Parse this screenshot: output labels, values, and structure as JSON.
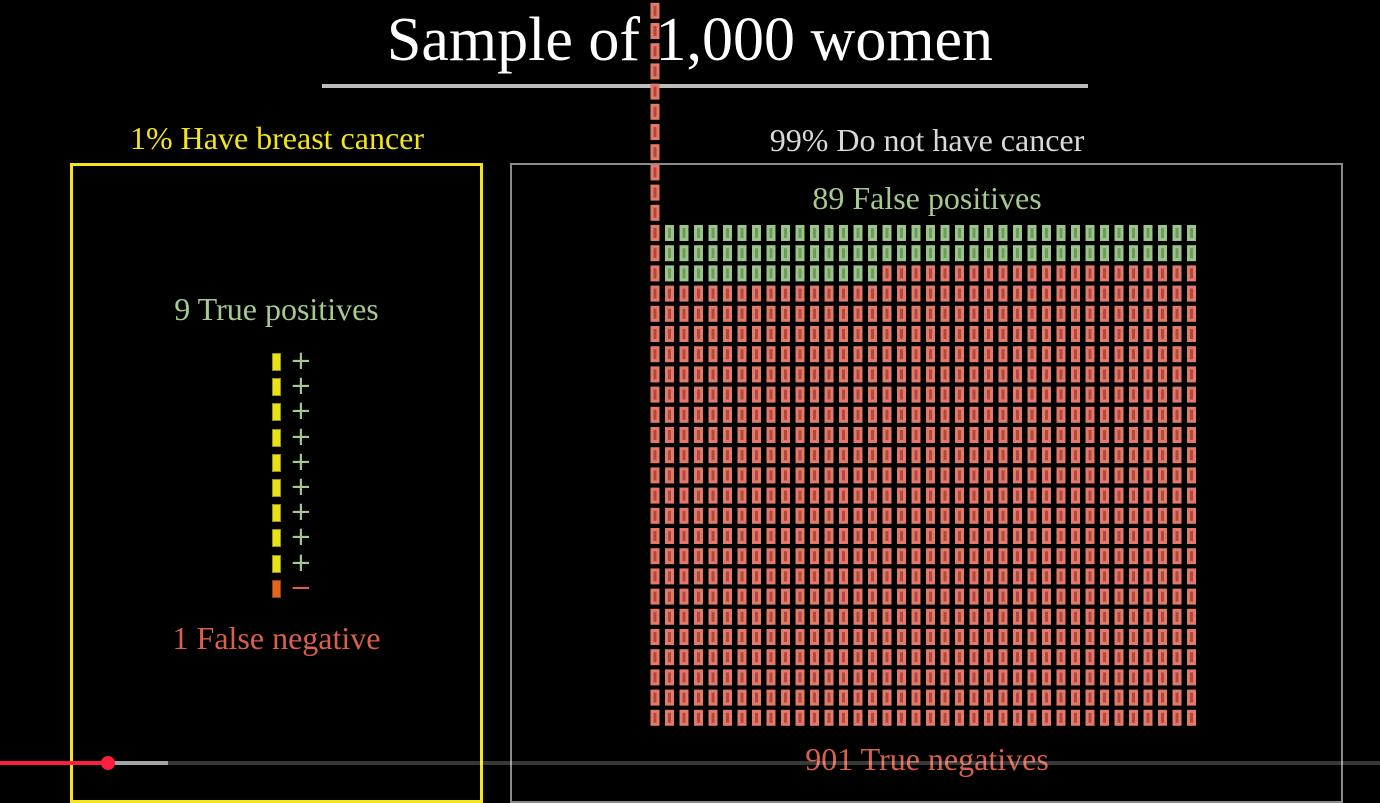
{
  "title": "Sample of 1,000 women",
  "left": {
    "heading": "1% Have breast cancer",
    "true_positives_label": "9 True positives",
    "false_negative_label": "1 False negative",
    "people": [
      {
        "sign": "+",
        "status": "true-positive"
      },
      {
        "sign": "+",
        "status": "true-positive"
      },
      {
        "sign": "+",
        "status": "true-positive"
      },
      {
        "sign": "+",
        "status": "true-positive"
      },
      {
        "sign": "+",
        "status": "true-positive"
      },
      {
        "sign": "+",
        "status": "true-positive"
      },
      {
        "sign": "+",
        "status": "true-positive"
      },
      {
        "sign": "+",
        "status": "true-positive"
      },
      {
        "sign": "+",
        "status": "true-positive"
      },
      {
        "sign": "−",
        "status": "false-negative"
      }
    ]
  },
  "right": {
    "heading": "99% Do not have cancer",
    "false_positives_label": "89 False positives",
    "true_negatives_label": "901 True negatives",
    "false_positive_count": 89,
    "true_negative_count": 901
  },
  "colors": {
    "yellow": "#f4e41c",
    "white_heading": "#d9d9d9",
    "green_text": "#a6c98e",
    "red_text": "#d9614a",
    "green_icon": "#9cc48a",
    "red_icon": "#e07b6c",
    "red_icon_dark": "#b4463c",
    "tp_icon": "#e8e01a",
    "fn_icon": "#e2641f",
    "progress": "#ff1f3c"
  },
  "icons": {
    "person": "person-icon",
    "plus": "plus-icon",
    "minus": "minus-icon"
  },
  "player": {
    "progress": 0.078
  }
}
